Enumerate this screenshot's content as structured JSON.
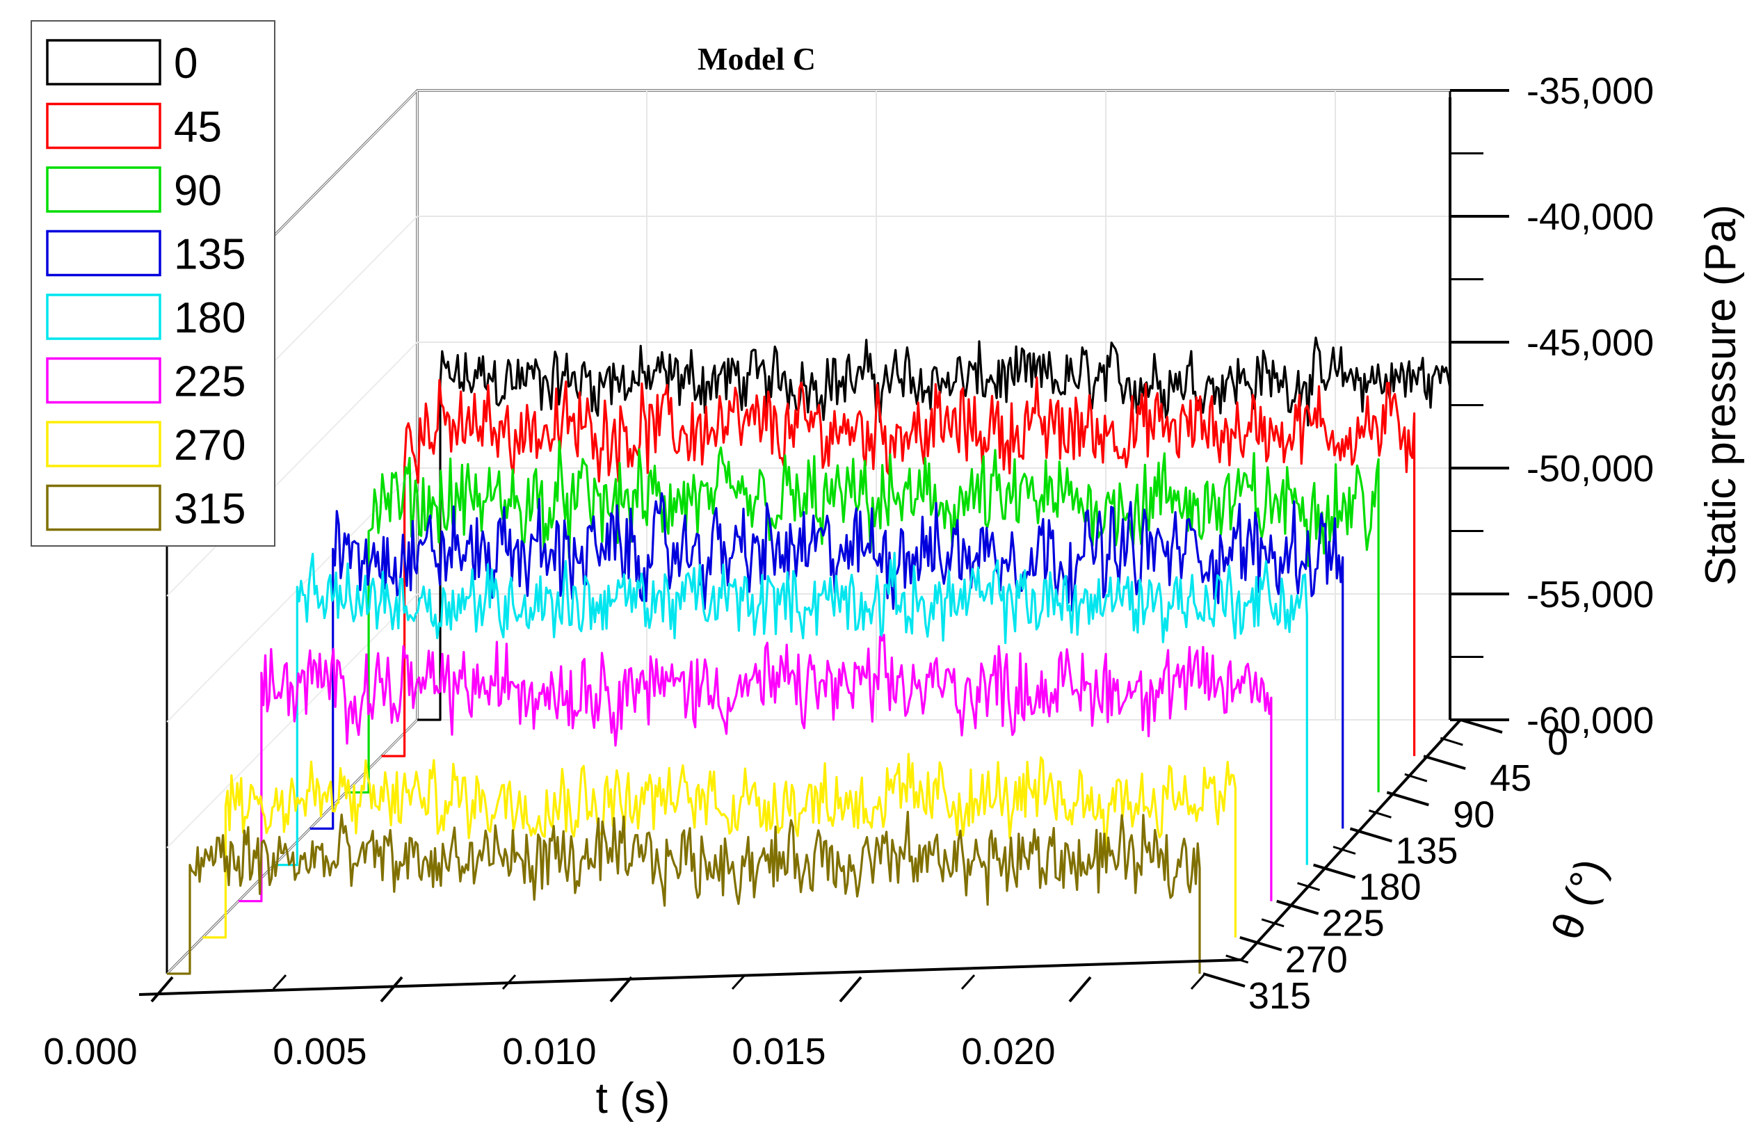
{
  "chart_data": {
    "type": "line",
    "title": "Model C",
    "xlabel": "t (s)",
    "ylabel": "Static pressure (Pa)",
    "zlabel": "θ (°)",
    "xlim": [
      0,
      0.0225
    ],
    "ylim": [
      -60000,
      -35000
    ],
    "x_ticks": [
      "0.000",
      "0.005",
      "0.010",
      "0.015",
      "0.020"
    ],
    "x_tick_values": [
      0,
      0.005,
      0.01,
      0.015,
      0.02
    ],
    "y_ticks": [
      "-35,000",
      "-40,000",
      "-45,000",
      "-50,000",
      "-55,000",
      "-60,000"
    ],
    "y_tick_values": [
      -35000,
      -40000,
      -45000,
      -50000,
      -55000,
      -60000
    ],
    "z_ticks": [
      "0",
      "45",
      "90",
      "135",
      "180",
      "225",
      "270",
      "315"
    ],
    "legend_position": "top-left",
    "series": [
      {
        "name": "0",
        "color": "#000000",
        "mean": -46500,
        "amplitude": 1600,
        "t_start": 0.0005,
        "t_end": 0.0225
      },
      {
        "name": "45",
        "color": "#ff0000",
        "mean": -47000,
        "amplitude": 2000,
        "t_start": 0.0005,
        "t_end": 0.0225
      },
      {
        "name": "90",
        "color": "#00dd00",
        "mean": -48500,
        "amplitude": 2200,
        "t_start": 0.0005,
        "t_end": 0.0225
      },
      {
        "name": "135",
        "color": "#0000dd",
        "mean": -49000,
        "amplitude": 2200,
        "t_start": 0.0005,
        "t_end": 0.0225
      },
      {
        "name": "180",
        "color": "#00e5ee",
        "mean": -49500,
        "amplitude": 1800,
        "t_start": 0.0005,
        "t_end": 0.0225
      },
      {
        "name": "225",
        "color": "#ff00ff",
        "mean": -51500,
        "amplitude": 2000,
        "t_start": 0.0005,
        "t_end": 0.0225
      },
      {
        "name": "270",
        "color": "#ffee00",
        "mean": -54500,
        "amplitude": 1800,
        "t_start": 0.0005,
        "t_end": 0.0225
      },
      {
        "name": "315",
        "color": "#807000",
        "mean": -55500,
        "amplitude": 1800,
        "t_start": 0.0005,
        "t_end": 0.0225
      }
    ]
  }
}
